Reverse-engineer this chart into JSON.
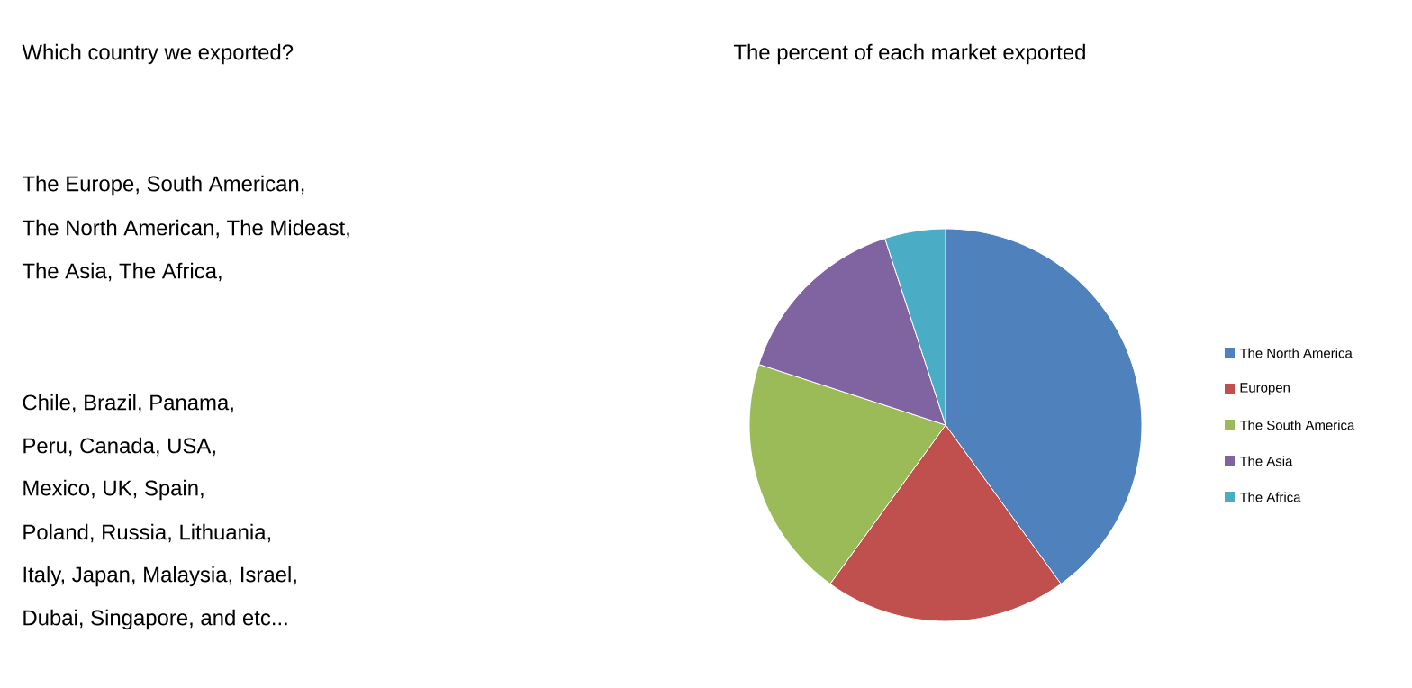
{
  "chart_data": {
    "type": "pie",
    "title": "The percent of each market exported",
    "categories": [
      "The North America",
      "Europen",
      "The South America",
      "The Asia",
      "The Africa"
    ],
    "values": [
      40,
      20,
      20,
      15,
      5
    ],
    "colors": [
      "#4f81bd",
      "#c0504d",
      "#9bbb59",
      "#8064a2",
      "#4bacc6"
    ],
    "legend": "right",
    "annotations": [
      "Which country we exported?",
      "The Europe, South American,",
      "The North American, The Mideast,",
      "The Asia, The Africa,",
      "Chile, Brazil, Panama,",
      "Peru, Canada, USA,",
      "Mexico, UK, Spain,",
      "Poland, Russia, Lithuania,",
      "Italy, Japan, Malaysia, Israel,",
      "Dubai, Singapore, and etc..."
    ]
  }
}
